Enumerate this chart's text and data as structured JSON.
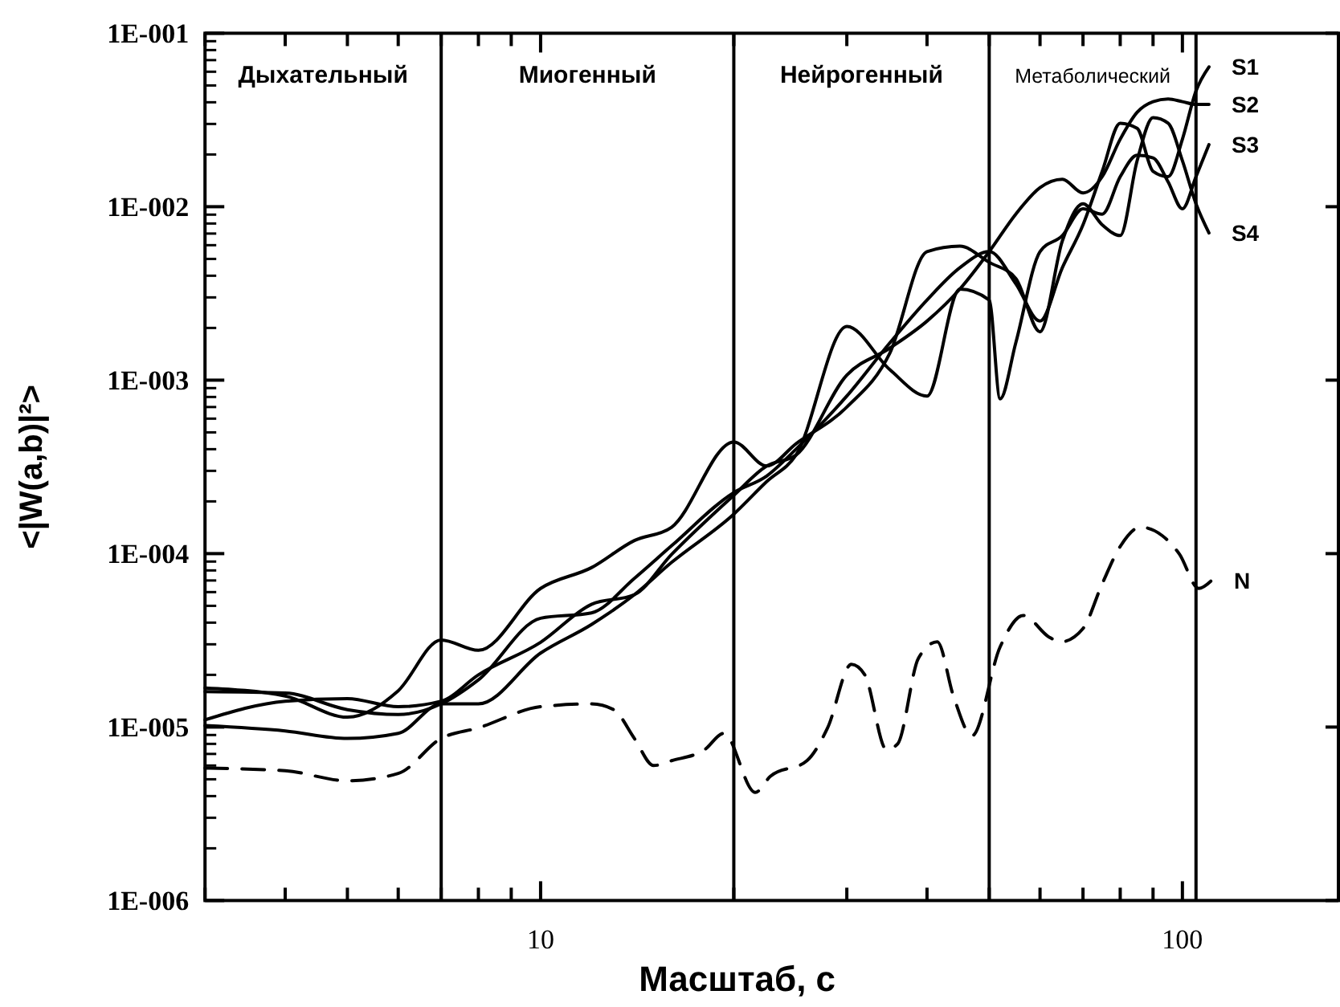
{
  "chart_data": {
    "type": "line",
    "xlabel": "Масштаб, с",
    "ylabel": "<|W(a,b)|²>",
    "log": "xy",
    "grid": false,
    "legend": false,
    "marker": "none",
    "xlim": [
      3,
      175
    ],
    "ylim": [
      1e-06,
      0.1
    ],
    "xticks": [
      {
        "value": 3,
        "label": null
      },
      {
        "value": 4,
        "label": null
      },
      {
        "value": 5,
        "label": null
      },
      {
        "value": 6,
        "label": null
      },
      {
        "value": 7,
        "label": null
      },
      {
        "value": 8,
        "label": null
      },
      {
        "value": 9,
        "label": null
      },
      10,
      {
        "value": 20,
        "label": null
      },
      {
        "value": 30,
        "label": null
      },
      {
        "value": 40,
        "label": null
      },
      {
        "value": 50,
        "label": null
      },
      {
        "value": 60,
        "label": null
      },
      {
        "value": 70,
        "label": null
      },
      {
        "value": 80,
        "label": null
      },
      {
        "value": 90,
        "label": null
      },
      100
    ],
    "yticks": [
      {
        "value": 1e-06,
        "label": "1E-006"
      },
      {
        "value": 1e-05,
        "label": "1E-005"
      },
      {
        "value": 0.0001,
        "label": "1E-004"
      },
      {
        "value": 0.001,
        "label": "1E-003"
      },
      {
        "value": 0.01,
        "label": "1E-002"
      },
      {
        "value": 0.1,
        "label": "1E-001"
      }
    ],
    "ref_lines": [
      {
        "axis": "x",
        "value": 7
      },
      {
        "axis": "x",
        "value": 20
      },
      {
        "axis": "x",
        "value": 50
      },
      {
        "axis": "x",
        "value": 105
      }
    ],
    "annotations": [
      "Дыхательный",
      "Миогенный",
      "Нейрогенный",
      "Метаболический"
    ],
    "series": [
      {
        "name": "S1",
        "color": "#000000",
        "x": [
          3,
          4,
          5,
          6,
          7,
          8,
          10,
          12,
          14,
          16,
          20,
          22.5,
          25,
          30,
          35,
          40,
          45,
          50,
          55,
          60,
          65,
          70,
          75,
          80,
          85,
          90,
          95,
          100,
          105,
          110
        ],
        "values": [
          1.6e-05,
          1.57e-05,
          1.26e-05,
          1.18e-05,
          1.36e-05,
          1.87e-05,
          4.24e-05,
          4.55e-05,
          7.2e-05,
          0.000111,
          0.000225,
          0.00028,
          0.0004,
          0.00081,
          0.00164,
          0.0029,
          0.00445,
          0.00551,
          0.0036,
          0.00219,
          0.00445,
          0.00786,
          0.016,
          0.0303,
          0.0283,
          0.016,
          0.0149,
          0.0245,
          0.0465,
          0.064
        ]
      },
      {
        "name": "S2",
        "color": "#000000",
        "x": [
          3,
          4,
          5,
          6,
          7,
          8,
          10,
          12,
          14,
          16,
          20,
          22.5,
          25,
          30,
          35,
          40,
          45,
          50,
          55,
          60,
          65,
          70,
          75,
          80,
          85,
          90,
          95,
          100,
          105,
          110
        ],
        "values": [
          1.1e-05,
          1.41e-05,
          1.46e-05,
          1.31e-05,
          1.41e-05,
          2e-05,
          3.08e-05,
          5.1e-05,
          5.8e-05,
          9.9e-05,
          0.000217,
          0.00032,
          0.00037,
          0.00107,
          0.00153,
          0.00219,
          0.00335,
          0.00551,
          0.00906,
          0.0129,
          0.0144,
          0.012,
          0.0149,
          0.0245,
          0.035,
          0.0403,
          0.0418,
          0.0403,
          0.0389,
          0.0389
        ]
      },
      {
        "name": "S3",
        "color": "#000000",
        "x": [
          3,
          4,
          5,
          6,
          7,
          8,
          10,
          12,
          14,
          16,
          20,
          22.5,
          25,
          30,
          35,
          40,
          45,
          50,
          52,
          55,
          60,
          65,
          70,
          75,
          80,
          85,
          90,
          95,
          100,
          105,
          110
        ],
        "values": [
          1.02e-05,
          9.5e-06,
          8.6e-06,
          9.2e-06,
          1.36e-05,
          1.36e-05,
          2.67e-05,
          3.9e-05,
          5.8e-05,
          8.9e-05,
          0.000169,
          0.00026,
          0.00037,
          0.00204,
          0.00115,
          0.00081,
          0.00335,
          0.0029,
          0.00078,
          0.00164,
          0.00551,
          0.00682,
          0.00973,
          0.00906,
          0.0149,
          0.0198,
          0.0191,
          0.0139,
          0.00973,
          0.0149,
          0.0228
        ]
      },
      {
        "name": "S4",
        "color": "#000000",
        "x": [
          3,
          4,
          5,
          6,
          7,
          8,
          10,
          12,
          14,
          16,
          20,
          22.5,
          25,
          30,
          35,
          40,
          45,
          50,
          55,
          60,
          65,
          70,
          75,
          80,
          85,
          90,
          95,
          100,
          105,
          110
        ],
        "values": [
          1.68e-05,
          1.51e-05,
          1.14e-05,
          1.62e-05,
          3.18e-05,
          2.77e-05,
          6.3e-05,
          8.3e-05,
          0.000119,
          0.000142,
          0.00044,
          0.00032,
          0.00043,
          0.0007,
          0.00143,
          0.00551,
          0.00592,
          0.00478,
          0.00386,
          0.0019,
          0.00635,
          0.0104,
          0.00786,
          0.00682,
          0.0184,
          0.0326,
          0.0303,
          0.0184,
          0.0104,
          0.00706
        ]
      },
      {
        "name": "N",
        "color": "#000000",
        "line_style": "dashed",
        "x": [
          3,
          4,
          5,
          6,
          7,
          8,
          10,
          12,
          13,
          14,
          15,
          16,
          18,
          19.3,
          21.6,
          22.8,
          26,
          28,
          30.5,
          32,
          34.6,
          36,
          38.8,
          41.5,
          44,
          47,
          52,
          56.5,
          62,
          64.6,
          70,
          75,
          80,
          86,
          93,
          99,
          106,
          111
        ],
        "values": [
          5.8e-06,
          5.6e-06,
          4.9e-06,
          5.4e-06,
          8.6e-06,
          9.9e-06,
          1.31e-05,
          1.36e-05,
          1.26e-05,
          8.6e-06,
          6e-06,
          6.4e-06,
          7.4e-06,
          9.2e-06,
          4.2e-06,
          5.2e-06,
          6.4e-06,
          9.9e-06,
          2.3e-05,
          2e-05,
          7.4e-06,
          8e-06,
          2.5e-05,
          3.1e-05,
          1.5e-05,
          8.9e-06,
          2.9e-05,
          4.4e-05,
          3.3e-05,
          3.1e-05,
          3.7e-05,
          6.7e-05,
          0.00011,
          0.000142,
          0.000127,
          9.9e-05,
          6.3e-05,
          7e-05
        ]
      }
    ]
  }
}
